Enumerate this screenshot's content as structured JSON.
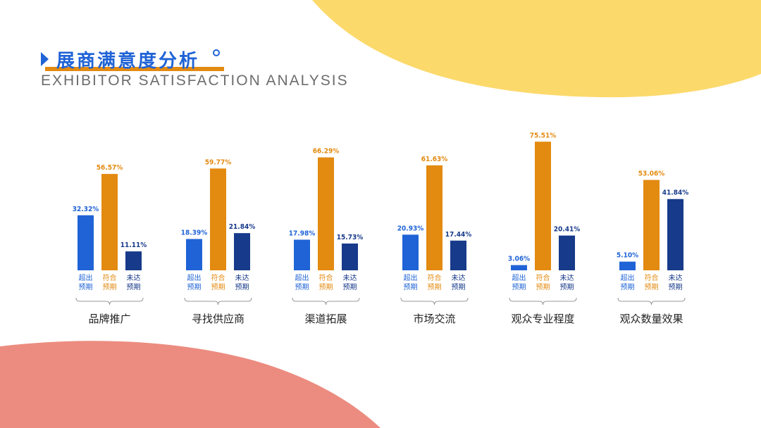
{
  "title": "展商满意度分析",
  "subtitle": "EXHIBITOR SATISFACTION ANALYSIS",
  "colors": {
    "exceed": "#1f63d6",
    "meet": "#e38a10",
    "below": "#173a8a",
    "decoration_yellow": "#fcd96b",
    "decoration_salmon": "#ec8c80",
    "brace": "#9a9a9a"
  },
  "chart_data": {
    "type": "bar",
    "series_labels": [
      "超出\n预期",
      "符合\n预期",
      "未达\n预期"
    ],
    "categories": [
      "品牌推广",
      "寻找供应商",
      "渠道拓展",
      "市场交流",
      "观众专业程度",
      "观众数量效果"
    ],
    "series": [
      {
        "name": "超出预期",
        "values": [
          32.32,
          18.39,
          17.98,
          20.93,
          3.06,
          5.1
        ]
      },
      {
        "name": "符合预期",
        "values": [
          56.57,
          59.77,
          66.29,
          61.63,
          75.51,
          53.06
        ]
      },
      {
        "name": "未达预期",
        "values": [
          11.11,
          21.84,
          15.73,
          17.44,
          20.41,
          41.84
        ]
      }
    ],
    "value_labels": [
      [
        "32.32%",
        "56.57%",
        "11.11%"
      ],
      [
        "18.39%",
        "59.77%",
        "21.84%"
      ],
      [
        "17.98%",
        "66.29%",
        "15.73%"
      ],
      [
        "20.93%",
        "61.63%",
        "17.44%"
      ],
      [
        "3.06%",
        "75.51%",
        "20.41%"
      ],
      [
        "5.10%",
        "53.06%",
        "41.84%"
      ]
    ],
    "ylim": [
      0,
      100
    ],
    "legend": "none",
    "grid": false
  }
}
